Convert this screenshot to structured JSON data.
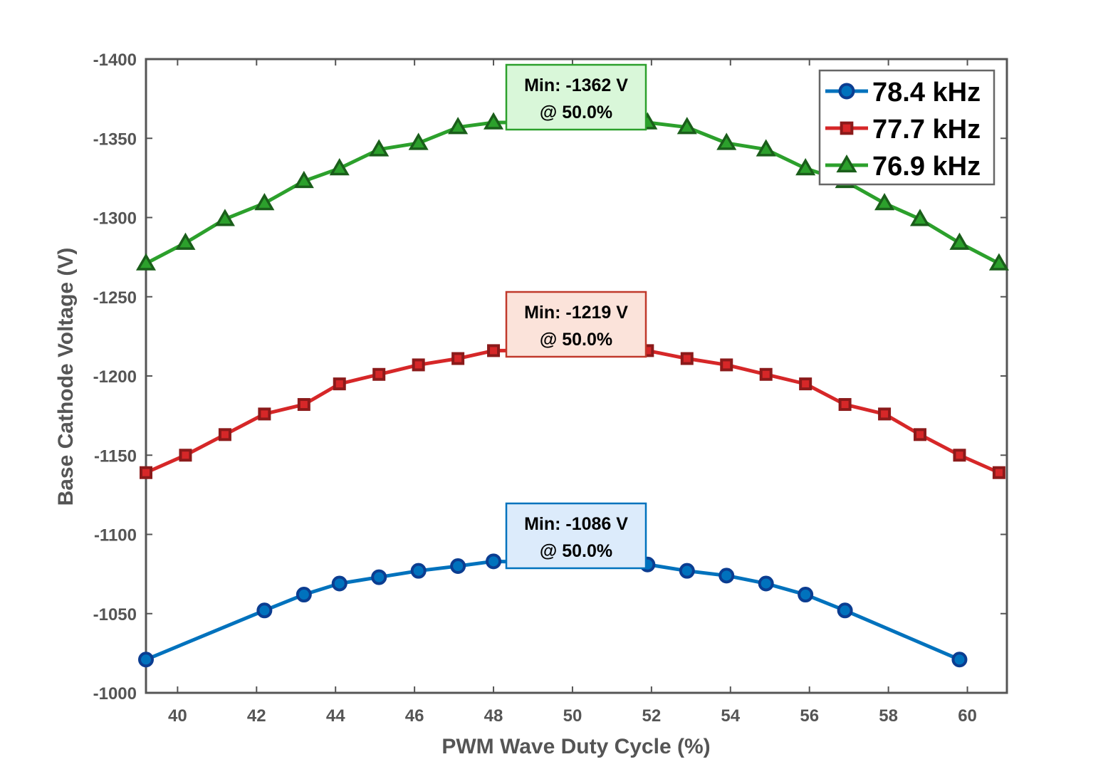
{
  "chart_data": {
    "type": "line",
    "xlabel": "PWM Wave Duty Cycle (%)",
    "ylabel": "Base Cathode Voltage (V)",
    "xlim": [
      39.2,
      61.0
    ],
    "ylim": [
      -1000,
      -1400
    ],
    "y_reversed": true,
    "xticks": [
      40,
      42,
      44,
      46,
      48,
      50,
      52,
      54,
      56,
      58,
      60
    ],
    "yticks": [
      -1000,
      -1050,
      -1100,
      -1150,
      -1200,
      -1250,
      -1300,
      -1350,
      -1400
    ],
    "grid": true,
    "legend_position": "top-right",
    "series": [
      {
        "name": "78.4 kHz",
        "color": "#0072BD",
        "edge_color": "#0B3D91",
        "marker": "circle",
        "x": [
          39.2,
          42.2,
          43.2,
          44.1,
          45.1,
          46.1,
          47.1,
          48.0,
          51.9,
          52.9,
          53.9,
          54.9,
          55.9,
          56.9,
          59.8
        ],
        "y": [
          -1021,
          -1052,
          -1062,
          -1069,
          -1073,
          -1077,
          -1080,
          -1083,
          -1081,
          -1077,
          -1074,
          -1069,
          -1062,
          -1052,
          -1021
        ]
      },
      {
        "name": "77.7 kHz",
        "color": "#D62728",
        "edge_color": "#8B1A1A",
        "marker": "square",
        "x": [
          39.2,
          40.2,
          41.2,
          42.2,
          43.2,
          44.1,
          45.1,
          46.1,
          47.1,
          48.0,
          51.9,
          52.9,
          53.9,
          54.9,
          55.9,
          56.9,
          57.9,
          58.8,
          59.8,
          60.8
        ],
        "y": [
          -1139,
          -1150,
          -1163,
          -1176,
          -1182,
          -1195,
          -1201,
          -1207,
          -1211,
          -1216,
          -1216,
          -1211,
          -1207,
          -1201,
          -1195,
          -1182,
          -1176,
          -1163,
          -1150,
          -1139
        ]
      },
      {
        "name": "76.9 kHz",
        "color": "#2CA02C",
        "edge_color": "#1A5E1A",
        "marker": "triangle",
        "x": [
          39.2,
          40.2,
          41.2,
          42.2,
          43.2,
          44.1,
          45.1,
          46.1,
          47.1,
          48.0,
          51.9,
          52.9,
          53.9,
          54.9,
          55.9,
          56.9,
          57.9,
          58.8,
          59.8,
          60.8
        ],
        "y": [
          -1271,
          -1284,
          -1299,
          -1309,
          -1323,
          -1331,
          -1343,
          -1347,
          -1357,
          -1360,
          -1360,
          -1357,
          -1347,
          -1343,
          -1331,
          -1323,
          -1309,
          -1299,
          -1284,
          -1271
        ]
      }
    ],
    "annotations": [
      {
        "line1": "Min: -1362 V",
        "line2": "@ 50.0%",
        "fill": "#D9F7D9",
        "stroke": "#2CA02C"
      },
      {
        "line1": "Min: -1219 V",
        "line2": "@ 50.0%",
        "fill": "#FBE3DA",
        "stroke": "#C0392B"
      },
      {
        "line1": "Min: -1086 V",
        "line2": "@ 50.0%",
        "fill": "#DCEBFB",
        "stroke": "#0072BD"
      }
    ]
  }
}
